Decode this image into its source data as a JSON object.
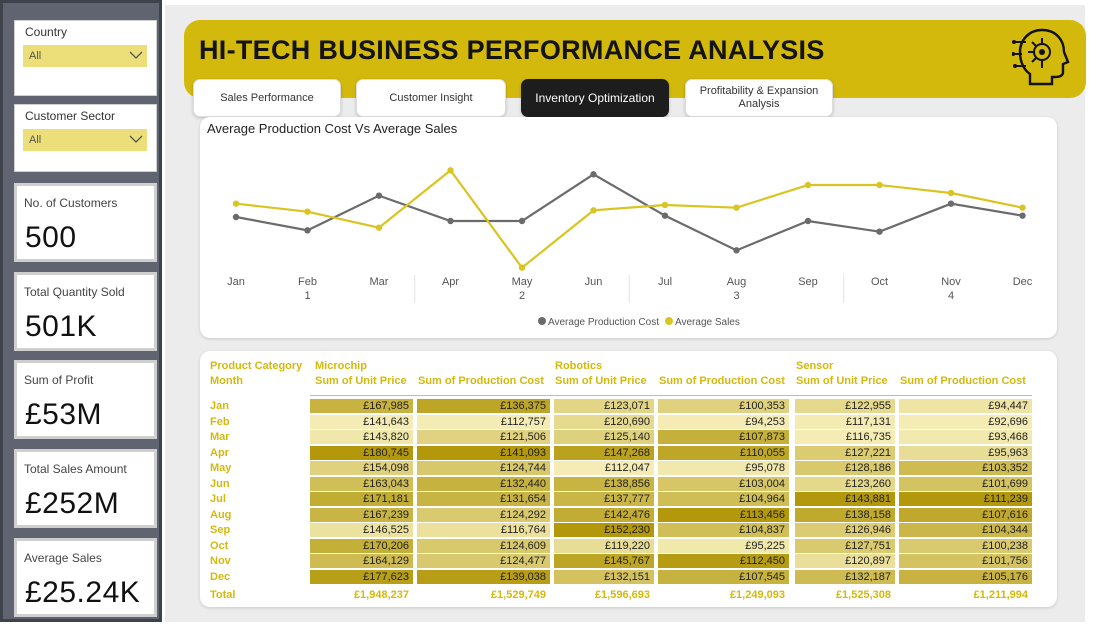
{
  "slicers": {
    "country": {
      "label": "Country",
      "value": "All"
    },
    "customer_sector": {
      "label": "Customer Sector",
      "value": "All"
    }
  },
  "kpis": [
    {
      "label": "No. of Customers",
      "value": "500"
    },
    {
      "label": "Total Quantity Sold",
      "value": "501K"
    },
    {
      "label": "Sum of Profit",
      "value": "£53M"
    },
    {
      "label": "Total Sales Amount",
      "value": "£252M"
    },
    {
      "label": "Average Sales",
      "value": "£25.24K"
    }
  ],
  "header": {
    "title": "HI-TECH BUSINESS PERFORMANCE ANALYSIS",
    "icon": "robot-head-icon"
  },
  "tabs": [
    {
      "label": "Sales Performance",
      "active": false
    },
    {
      "label": "Customer Insight",
      "active": false
    },
    {
      "label": "Inventory Optimization",
      "active": true
    },
    {
      "label": "Profitability & Expansion Analysis",
      "active": false
    }
  ],
  "colors": {
    "accent": "#d4b90d",
    "production_cost": "#6b6b6b",
    "sales": "#d9c421"
  },
  "chart_data": {
    "type": "line",
    "title": "Average Production Cost Vs Average Sales",
    "categories": [
      "Jan",
      "Feb",
      "Mar",
      "Apr",
      "May",
      "Jun",
      "Jul",
      "Aug",
      "Sep",
      "Oct",
      "Nov",
      "Dec"
    ],
    "quarter_labels": [
      "1",
      "2",
      "3",
      "4"
    ],
    "series": [
      {
        "name": "Average Production Cost",
        "color": "#6b6b6b",
        "values": [
          24.5,
          23.5,
          26.1,
          24.2,
          24.2,
          27.7,
          24.6,
          22.0,
          24.2,
          23.4,
          25.5,
          24.6
        ]
      },
      {
        "name": "Average Sales",
        "color": "#d9c421",
        "values": [
          25.5,
          24.9,
          23.7,
          28.0,
          20.7,
          25.0,
          25.4,
          25.2,
          26.9,
          26.9,
          26.3,
          25.2
        ]
      }
    ],
    "ylim": [
      20,
      29
    ],
    "grid": false,
    "legend_position": "bottom"
  },
  "table": {
    "row_header_top": "Product Category",
    "row_header_bottom": "Month",
    "categories": [
      "Microchip",
      "Robotics",
      "Sensor"
    ],
    "measures": [
      "Sum of Unit Price",
      "Sum of Production Cost"
    ],
    "rows": [
      {
        "month": "Jan",
        "values": [
          "£167,985",
          "£136,375",
          "£123,071",
          "£100,353",
          "£122,955",
          "£94,447"
        ]
      },
      {
        "month": "Feb",
        "values": [
          "£141,643",
          "£112,757",
          "£120,690",
          "£94,253",
          "£117,131",
          "£92,696"
        ]
      },
      {
        "month": "Mar",
        "values": [
          "£143,820",
          "£121,506",
          "£125,140",
          "£107,873",
          "£116,735",
          "£93,468"
        ]
      },
      {
        "month": "Apr",
        "values": [
          "£180,745",
          "£141,093",
          "£147,268",
          "£110,055",
          "£127,221",
          "£95,963"
        ]
      },
      {
        "month": "May",
        "values": [
          "£154,098",
          "£124,744",
          "£112,047",
          "£95,078",
          "£128,186",
          "£103,352"
        ]
      },
      {
        "month": "Jun",
        "values": [
          "£163,043",
          "£132,440",
          "£138,856",
          "£103,004",
          "£123,260",
          "£101,699"
        ]
      },
      {
        "month": "Jul",
        "values": [
          "£171,181",
          "£131,654",
          "£137,777",
          "£104,964",
          "£143,881",
          "£111,239"
        ]
      },
      {
        "month": "Aug",
        "values": [
          "£167,239",
          "£124,292",
          "£142,476",
          "£113,456",
          "£138,158",
          "£107,616"
        ]
      },
      {
        "month": "Sep",
        "values": [
          "£146,525",
          "£116,764",
          "£152,230",
          "£104,837",
          "£126,946",
          "£104,344"
        ]
      },
      {
        "month": "Oct",
        "values": [
          "£170,206",
          "£124,609",
          "£119,220",
          "£95,225",
          "£127,751",
          "£100,238"
        ]
      },
      {
        "month": "Nov",
        "values": [
          "£164,129",
          "£124,477",
          "£145,767",
          "£112,450",
          "£120,897",
          "£101,756"
        ]
      },
      {
        "month": "Dec",
        "values": [
          "£177,623",
          "£139,038",
          "£132,151",
          "£107,545",
          "£132,187",
          "£105,176"
        ]
      }
    ],
    "total_label": "Total",
    "totals": [
      "£1,948,237",
      "£1,529,749",
      "£1,596,693",
      "£1,249,093",
      "£1,525,308",
      "£1,211,994"
    ]
  }
}
